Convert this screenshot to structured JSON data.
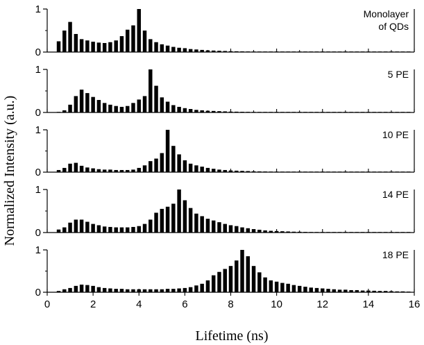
{
  "chart_data": {
    "type": "bar",
    "xlabel": "Lifetime (ns)",
    "ylabel": "Normalized Intensity (a.u.)",
    "xlim": [
      0,
      16
    ],
    "x_ticks": [
      0,
      2,
      4,
      6,
      8,
      10,
      12,
      14,
      16
    ],
    "ylim": [
      0,
      1
    ],
    "y_ticks": [
      0,
      1
    ],
    "bin_width": 0.25,
    "grid": false,
    "x": [
      0.5,
      0.75,
      1.0,
      1.25,
      1.5,
      1.75,
      2.0,
      2.25,
      2.5,
      2.75,
      3.0,
      3.25,
      3.5,
      3.75,
      4.0,
      4.25,
      4.5,
      4.75,
      5.0,
      5.25,
      5.5,
      5.75,
      6.0,
      6.25,
      6.5,
      6.75,
      7.0,
      7.25,
      7.5,
      7.75,
      8.0,
      8.25,
      8.5,
      8.75,
      9.0,
      9.25,
      9.5,
      9.75,
      10.0,
      10.25,
      10.5,
      10.75,
      11.0,
      11.25,
      11.5,
      11.75,
      12.0,
      12.25,
      12.5,
      12.75,
      13.0,
      13.25,
      13.5,
      13.75,
      14.0,
      14.25,
      14.5,
      14.75,
      15.0,
      15.25,
      15.5,
      15.75
    ],
    "series": [
      {
        "name": "Monolayer\nof QDs",
        "values": [
          0.25,
          0.5,
          0.7,
          0.42,
          0.3,
          0.27,
          0.24,
          0.22,
          0.21,
          0.23,
          0.27,
          0.37,
          0.52,
          0.62,
          1.0,
          0.5,
          0.3,
          0.23,
          0.18,
          0.15,
          0.12,
          0.1,
          0.09,
          0.07,
          0.06,
          0.05,
          0.04,
          0.035,
          0.03,
          0.025,
          0.02,
          0.018,
          0.016,
          0.014,
          0.012,
          0.01,
          0.01,
          0.008,
          0.008,
          0.007,
          0.006,
          0.006,
          0.005,
          0.005,
          0.005,
          0.004,
          0.004,
          0.004,
          0.003,
          0.003,
          0.003,
          0.003,
          0.003,
          0.002,
          0.002,
          0.002,
          0.002,
          0.002,
          0.002,
          0.002,
          0.002,
          0.002
        ]
      },
      {
        "name": "5 PE",
        "values": [
          0.0,
          0.05,
          0.18,
          0.38,
          0.53,
          0.45,
          0.36,
          0.29,
          0.22,
          0.18,
          0.15,
          0.13,
          0.15,
          0.22,
          0.3,
          0.38,
          1.0,
          0.62,
          0.35,
          0.25,
          0.17,
          0.13,
          0.1,
          0.08,
          0.06,
          0.05,
          0.04,
          0.035,
          0.03,
          0.025,
          0.02,
          0.018,
          0.016,
          0.014,
          0.012,
          0.01,
          0.01,
          0.009,
          0.008,
          0.007,
          0.006,
          0.006,
          0.005,
          0.005,
          0.004,
          0.004,
          0.004,
          0.003,
          0.003,
          0.003,
          0.003,
          0.002,
          0.002,
          0.002,
          0.002,
          0.002,
          0.002,
          0.002,
          0.002,
          0.001,
          0.001,
          0.001
        ]
      },
      {
        "name": "10 PE",
        "values": [
          0.05,
          0.1,
          0.2,
          0.22,
          0.15,
          0.11,
          0.09,
          0.07,
          0.06,
          0.06,
          0.05,
          0.05,
          0.05,
          0.06,
          0.1,
          0.16,
          0.26,
          0.32,
          0.45,
          1.0,
          0.62,
          0.42,
          0.28,
          0.2,
          0.16,
          0.13,
          0.1,
          0.08,
          0.06,
          0.05,
          0.04,
          0.035,
          0.03,
          0.025,
          0.02,
          0.018,
          0.016,
          0.014,
          0.012,
          0.01,
          0.009,
          0.008,
          0.007,
          0.006,
          0.006,
          0.005,
          0.005,
          0.004,
          0.004,
          0.004,
          0.003,
          0.003,
          0.003,
          0.003,
          0.002,
          0.002,
          0.002,
          0.002,
          0.002,
          0.002,
          0.002,
          0.002
        ]
      },
      {
        "name": "14 PE",
        "values": [
          0.07,
          0.12,
          0.23,
          0.3,
          0.3,
          0.25,
          0.2,
          0.17,
          0.14,
          0.13,
          0.12,
          0.12,
          0.12,
          0.13,
          0.15,
          0.2,
          0.3,
          0.46,
          0.55,
          0.6,
          0.67,
          1.0,
          0.75,
          0.57,
          0.44,
          0.38,
          0.32,
          0.28,
          0.24,
          0.2,
          0.17,
          0.15,
          0.12,
          0.1,
          0.08,
          0.065,
          0.05,
          0.04,
          0.035,
          0.03,
          0.025,
          0.02,
          0.018,
          0.015,
          0.013,
          0.012,
          0.01,
          0.009,
          0.008,
          0.007,
          0.006,
          0.006,
          0.005,
          0.005,
          0.004,
          0.004,
          0.004,
          0.003,
          0.003,
          0.003,
          0.003,
          0.002
        ]
      },
      {
        "name": "18 PE",
        "values": [
          0.03,
          0.07,
          0.1,
          0.15,
          0.18,
          0.17,
          0.15,
          0.12,
          0.1,
          0.09,
          0.08,
          0.08,
          0.07,
          0.07,
          0.07,
          0.07,
          0.07,
          0.07,
          0.07,
          0.08,
          0.08,
          0.09,
          0.1,
          0.12,
          0.16,
          0.2,
          0.28,
          0.4,
          0.48,
          0.55,
          0.62,
          0.75,
          1.0,
          0.85,
          0.62,
          0.47,
          0.35,
          0.28,
          0.25,
          0.22,
          0.2,
          0.17,
          0.15,
          0.13,
          0.11,
          0.1,
          0.09,
          0.08,
          0.07,
          0.06,
          0.06,
          0.05,
          0.05,
          0.04,
          0.04,
          0.035,
          0.03,
          0.03,
          0.025,
          0.02,
          0.02,
          0.015
        ]
      }
    ]
  }
}
